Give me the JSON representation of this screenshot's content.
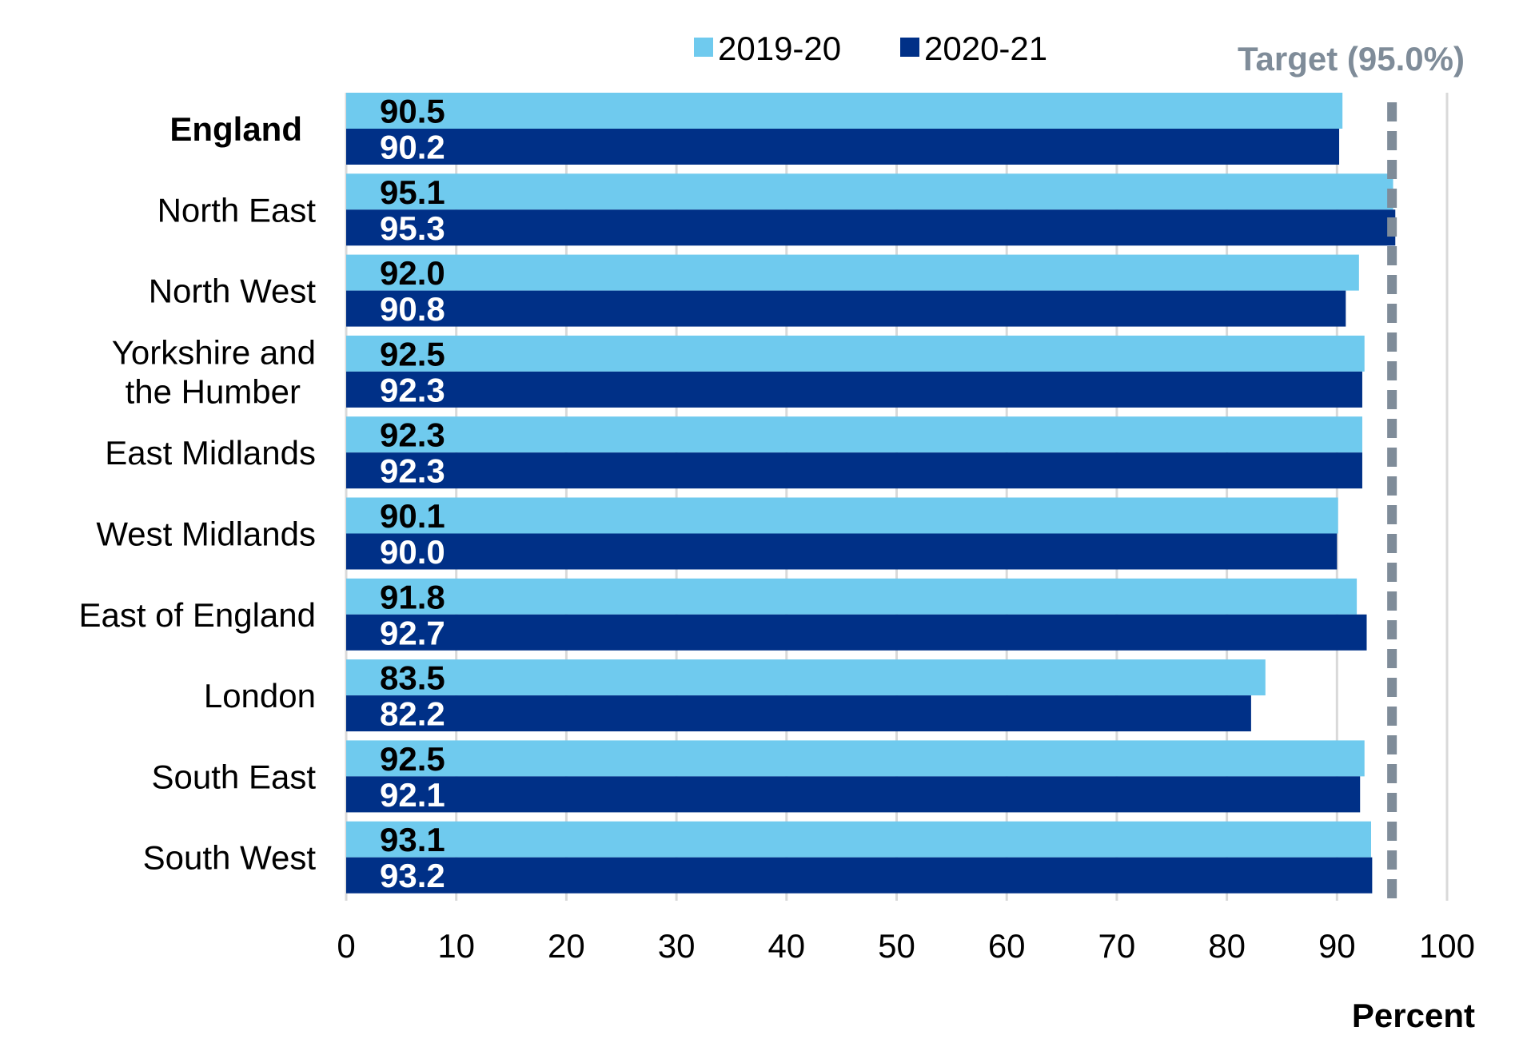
{
  "chart_data": {
    "type": "bar",
    "orientation": "horizontal",
    "categories": [
      "England",
      "North East",
      "North West",
      "Yorkshire and the Humber",
      "East Midlands",
      "West Midlands",
      "East of England",
      "London",
      "South East",
      "South West"
    ],
    "category_lines": [
      [
        "England"
      ],
      [
        "North East"
      ],
      [
        "North West"
      ],
      [
        "Yorkshire and",
        "the Humber"
      ],
      [
        "East Midlands"
      ],
      [
        "West Midlands"
      ],
      [
        "East of England"
      ],
      [
        "London"
      ],
      [
        "South East"
      ],
      [
        "South West"
      ]
    ],
    "bold_categories": [
      "England"
    ],
    "series": [
      {
        "name": "2019-20",
        "color": "#6FCAEE",
        "label_color": "#000000",
        "values": [
          90.5,
          95.1,
          92.0,
          92.5,
          92.3,
          90.1,
          91.8,
          83.5,
          92.5,
          93.1
        ],
        "labels": [
          "90.5",
          "95.1",
          "92.0",
          "92.5",
          "92.3",
          "90.1",
          "91.8",
          "83.5",
          "92.5",
          "93.1"
        ]
      },
      {
        "name": "2020-21",
        "color": "#003087",
        "label_color": "#ffffff",
        "values": [
          90.2,
          95.3,
          90.8,
          92.3,
          92.3,
          90.0,
          92.7,
          82.2,
          92.1,
          93.2
        ],
        "labels": [
          "90.2",
          "95.3",
          "90.8",
          "92.3",
          "92.3",
          "90.0",
          "92.7",
          "82.2",
          "92.1",
          "93.2"
        ]
      }
    ],
    "xlim": [
      0,
      100
    ],
    "xticks": [
      "0",
      "10",
      "20",
      "30",
      "40",
      "50",
      "60",
      "70",
      "80",
      "90",
      "100"
    ],
    "xlabel": "Percent",
    "grid": "vertical",
    "grid_color": "#D9D9D9",
    "legend_position": "top",
    "target": {
      "value": 95.0,
      "label": "Target (95.0%)",
      "color": "#7F8C99",
      "style": "dashed"
    }
  }
}
